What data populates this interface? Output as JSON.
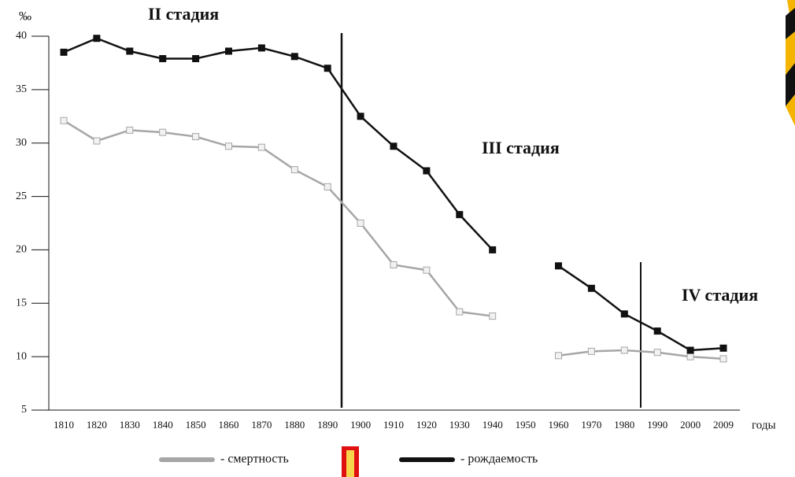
{
  "chart_data": {
    "type": "line",
    "y_label": "‰",
    "x_label": "годы",
    "annotations": [
      "II стадия",
      "III стадия",
      "IV стадия"
    ],
    "categories": [
      "1810",
      "1820",
      "1830",
      "1840",
      "1850",
      "1860",
      "1870",
      "1880",
      "1890",
      "1900",
      "1910",
      "1920",
      "1930",
      "1940",
      "1950",
      "1960",
      "1970",
      "1980",
      "1990",
      "2000",
      "2009"
    ],
    "series": [
      {
        "name": "- смертность",
        "color": "#a6a6a6",
        "marker_fill": "#f2f2f2",
        "values": [
          32.1,
          30.2,
          31.2,
          31.0,
          30.6,
          29.7,
          29.6,
          27.5,
          25.9,
          22.5,
          18.6,
          18.1,
          14.2,
          13.8,
          null,
          10.1,
          10.5,
          10.6,
          10.4,
          10.0,
          9.8
        ]
      },
      {
        "name": "- рождаемость",
        "color": "#111111",
        "marker_fill": "#111111",
        "values": [
          38.5,
          39.8,
          38.6,
          37.9,
          37.9,
          38.6,
          38.9,
          38.1,
          37.0,
          32.5,
          29.7,
          27.4,
          23.3,
          20.0,
          null,
          18.5,
          16.4,
          14.0,
          12.4,
          10.6,
          10.8
        ]
      }
    ],
    "ylim": [
      5,
      40
    ],
    "yticks": [
      5,
      10,
      15,
      20,
      25,
      30,
      35,
      40
    ],
    "grid": false
  }
}
